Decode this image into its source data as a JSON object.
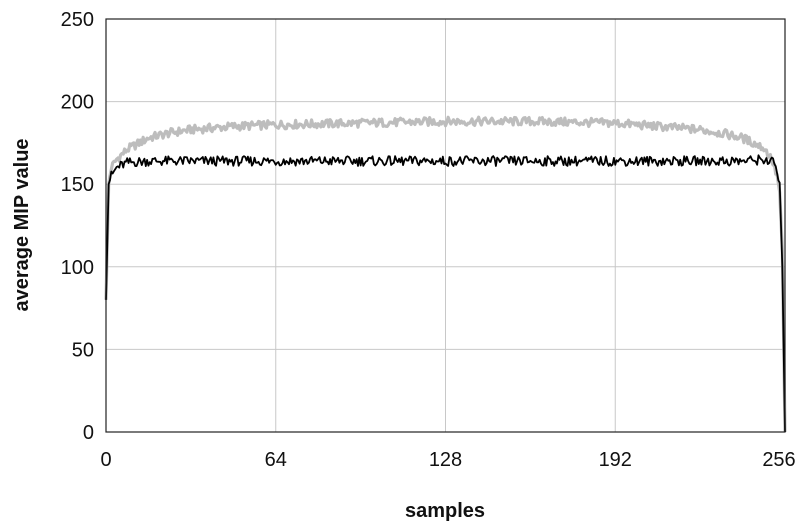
{
  "chart_data": {
    "type": "line",
    "title": "",
    "xlabel": "samples",
    "ylabel": "average MIP value",
    "xlim": [
      0,
      256
    ],
    "ylim": [
      0,
      250
    ],
    "x_ticks": [
      "0",
      "64",
      "128",
      "192",
      "256"
    ],
    "y_ticks": [
      "0",
      "50",
      "100",
      "150",
      "200",
      "250"
    ],
    "grid": true,
    "legend": "none",
    "series": [
      {
        "color": "#bdbdbd",
        "x": [
          0,
          1,
          2,
          4,
          8,
          16,
          24,
          32,
          48,
          64,
          96,
          128,
          160,
          192,
          208,
          224,
          232,
          240,
          248,
          251,
          253,
          254,
          255,
          256
        ],
        "values": [
          80,
          150,
          160,
          165,
          171,
          178,
          181,
          183,
          185,
          186,
          187,
          188,
          188,
          187,
          185,
          183,
          181,
          178,
          172,
          165,
          155,
          145,
          110,
          0
        ]
      },
      {
        "color": "#000000",
        "x": [
          0,
          1,
          2,
          4,
          8,
          16,
          32,
          64,
          96,
          128,
          160,
          192,
          224,
          240,
          248,
          252,
          254,
          255,
          256
        ],
        "values": [
          80,
          150,
          155,
          160,
          163,
          164,
          164,
          164,
          164,
          164,
          164,
          164,
          164,
          164,
          165,
          163,
          150,
          100,
          0
        ]
      }
    ]
  }
}
